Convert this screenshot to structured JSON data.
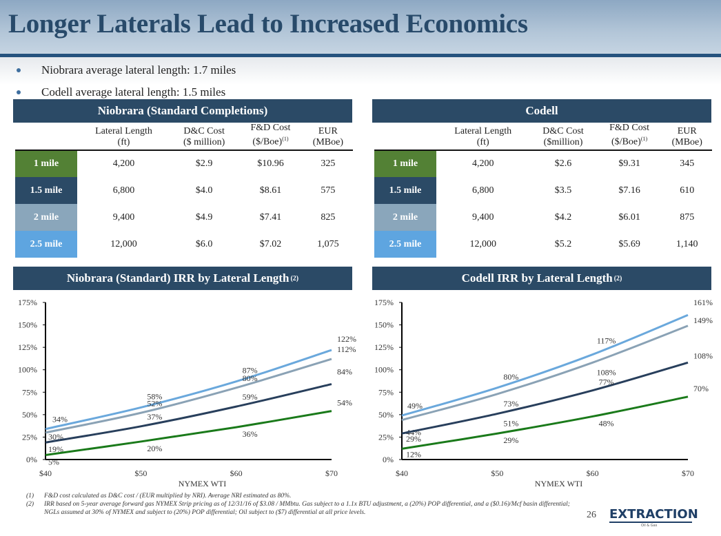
{
  "title": "Longer Laterals Lead to Increased Economics",
  "bullets": [
    "Niobrara average lateral length: 1.7 miles",
    "Codell average lateral length: 1.5 miles"
  ],
  "colors": {
    "one_mile": "#538135",
    "one_half_mile": "#2b4a66",
    "two_mile": "#8aa6bb",
    "two_half_mile": "#5ea5e0",
    "header_navy": "#2b4a66",
    "series_1mi": "#1a7a1a",
    "series_15mi": "#283f5c",
    "series_2mi": "#8aa2b5",
    "series_25mi": "#6aa8dc"
  },
  "tables": [
    {
      "title": "Niobrara (Standard Completions)",
      "headers": [
        [
          "Lateral Length",
          "(ft)"
        ],
        [
          "D&C Cost",
          "($ million)"
        ],
        [
          "F&D Cost",
          "($/Boe)",
          "(1)"
        ],
        [
          "EUR",
          "(MBoe)"
        ]
      ],
      "rows": [
        {
          "label": "1 mile",
          "cells": [
            "4,200",
            "$2.9",
            "$10.96",
            "325"
          ]
        },
        {
          "label": "1.5 mile",
          "cells": [
            "6,800",
            "$4.0",
            "$8.61",
            "575"
          ]
        },
        {
          "label": "2 mile",
          "cells": [
            "9,400",
            "$4.9",
            "$7.41",
            "825"
          ]
        },
        {
          "label": "2.5 mile",
          "cells": [
            "12,000",
            "$6.0",
            "$7.02",
            "1,075"
          ]
        }
      ]
    },
    {
      "title": "Codell",
      "headers": [
        [
          "Lateral Length",
          "(ft)"
        ],
        [
          "D&C Cost",
          "($million)"
        ],
        [
          "F&D Cost",
          "($/Boe)",
          "(1)"
        ],
        [
          "EUR",
          "(MBoe)"
        ]
      ],
      "rows": [
        {
          "label": "1 mile",
          "cells": [
            "4,200",
            "$2.6",
            "$9.31",
            "345"
          ]
        },
        {
          "label": "1.5 mile",
          "cells": [
            "6,800",
            "$3.5",
            "$7.16",
            "610"
          ]
        },
        {
          "label": "2 mile",
          "cells": [
            "9,400",
            "$4.2",
            "$6.01",
            "875"
          ]
        },
        {
          "label": "2.5 mile",
          "cells": [
            "12,000",
            "$5.2",
            "$5.69",
            "1,140"
          ]
        }
      ]
    }
  ],
  "chart_titles": [
    {
      "text": "Niobrara (Standard) IRR by Lateral Length",
      "sup": "(2)"
    },
    {
      "text": "Codell IRR by Lateral Length",
      "sup": "(2)"
    }
  ],
  "chart_data": [
    {
      "type": "line",
      "title": "Niobrara (Standard) IRR by Lateral Length (2)",
      "xlabel": "NYMEX WTI",
      "ylabel": "",
      "x": [
        40,
        50,
        60,
        70
      ],
      "x_tick_labels": [
        "$40",
        "$50",
        "$60",
        "$70"
      ],
      "y_tick_labels": [
        "0%",
        "25%",
        "50%",
        "75%",
        "100%",
        "125%",
        "150%",
        "175%"
      ],
      "ylim": [
        0,
        175
      ],
      "grid": false,
      "legend": "none",
      "series": [
        {
          "name": "2.5 mile",
          "values": [
            34,
            58,
            87,
            122
          ],
          "labels": [
            "34%",
            "58%",
            "87%",
            "122%"
          ]
        },
        {
          "name": "2 mile",
          "values": [
            30,
            52,
            80,
            112
          ],
          "labels": [
            "30%",
            "52%",
            "80%",
            "112%"
          ]
        },
        {
          "name": "1.5 mile",
          "values": [
            19,
            37,
            59,
            84
          ],
          "labels": [
            "19%",
            "37%",
            "59%",
            "84%"
          ]
        },
        {
          "name": "1 mile",
          "values": [
            5,
            20,
            36,
            54
          ],
          "labels": [
            "5%",
            "20%",
            "36%",
            "54%"
          ]
        }
      ]
    },
    {
      "type": "line",
      "title": "Codell IRR by Lateral Length (2)",
      "xlabel": "NYMEX WTI",
      "ylabel": "",
      "x": [
        40,
        50,
        60,
        70
      ],
      "x_tick_labels": [
        "$40",
        "$50",
        "$60",
        "$70"
      ],
      "y_tick_labels": [
        "0%",
        "25%",
        "50%",
        "75%",
        "100%",
        "125%",
        "150%",
        "175%"
      ],
      "ylim": [
        0,
        175
      ],
      "grid": false,
      "legend": "none",
      "series": [
        {
          "name": "2.5 mile",
          "values": [
            49,
            80,
            117,
            161
          ],
          "labels": [
            "49%",
            "80%",
            "117%",
            "161%"
          ]
        },
        {
          "name": "2 mile",
          "values": [
            44,
            73,
            108,
            149
          ],
          "labels": [
            "44%",
            "73%",
            "108%",
            "149%"
          ]
        },
        {
          "name": "1.5 mile",
          "values": [
            29,
            51,
            77,
            108
          ],
          "labels": [
            "29%",
            "51%",
            "77%",
            "108%"
          ]
        },
        {
          "name": "1 mile",
          "values": [
            12,
            29,
            48,
            70
          ],
          "labels": [
            "12%",
            "29%",
            "48%",
            "70%"
          ]
        }
      ]
    }
  ],
  "footnotes": [
    {
      "num": "(1)",
      "text": "F&D cost calculated as D&C cost / (EUR multiplied by NRI). Average NRI estimated as 80%."
    },
    {
      "num": "(2)",
      "text": "IRR based on 5-year average forward gas NYMEX Strip pricing as of 12/31/16 of $3.08 / MMbtu. Gas subject to a 1.1x BTU adjustment, a (20%) POP differential, and a ($0.16)/Mcf basin differential; NGLs assumed at 30% of NYMEX and subject to (20%) POP differential; Oil subject to ($7) differential at all price levels."
    }
  ],
  "page_number": "26",
  "logo": {
    "name": "EXTRACTION",
    "sub": "Oil & Gas"
  }
}
